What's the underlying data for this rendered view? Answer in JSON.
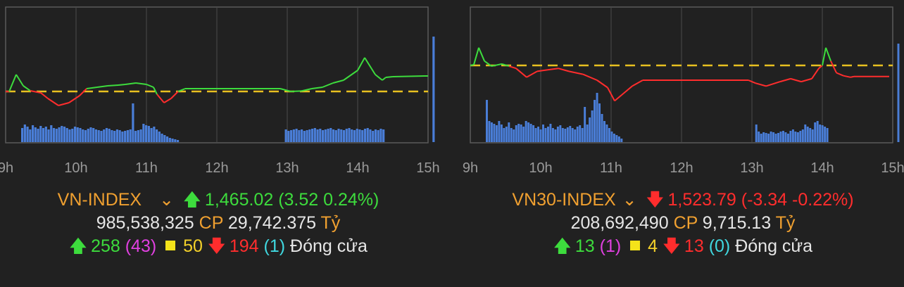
{
  "chart_data": [
    {
      "type": "line",
      "x_ticks": [
        "9h",
        "10h",
        "11h",
        "12h",
        "13h",
        "14h",
        "15h"
      ],
      "reference_line": "dashed-yellow",
      "colors": {
        "up": "#3ddc3d",
        "down": "#ff2d2d",
        "reference": "#e8c020",
        "volume": "#4a7ed8"
      },
      "series": [
        {
          "values": [
            [
              9.0,
              0
            ],
            [
              9.05,
              -0.1
            ],
            [
              9.15,
              12
            ],
            [
              9.25,
              4
            ],
            [
              9.35,
              0.5
            ],
            [
              9.5,
              -1
            ],
            [
              9.6,
              -5
            ],
            [
              9.75,
              -10
            ],
            [
              9.9,
              -8
            ],
            [
              10.05,
              -3
            ],
            [
              10.15,
              2
            ],
            [
              10.3,
              3
            ],
            [
              10.45,
              4
            ],
            [
              10.6,
              4.5
            ],
            [
              10.7,
              5
            ],
            [
              10.85,
              6
            ],
            [
              11.0,
              5
            ],
            [
              11.1,
              3
            ],
            [
              11.15,
              -2
            ],
            [
              11.25,
              -8
            ],
            [
              11.35,
              -5
            ],
            [
              11.45,
              0
            ],
            [
              11.55,
              2
            ],
            [
              11.65,
              2
            ],
            [
              12.0,
              2
            ],
            [
              12.5,
              2
            ],
            [
              12.9,
              2
            ],
            [
              13.05,
              0
            ],
            [
              13.2,
              0.3
            ],
            [
              13.35,
              2
            ],
            [
              13.5,
              3
            ],
            [
              13.65,
              6
            ],
            [
              13.8,
              8
            ],
            [
              14.0,
              15
            ],
            [
              14.1,
              24
            ],
            [
              14.25,
              12
            ],
            [
              14.35,
              8
            ],
            [
              14.4,
              10
            ],
            [
              14.5,
              10.5
            ],
            [
              14.95,
              11
            ]
          ]
        },
        {
          "values": [
            [
              14.95,
              11
            ],
            [
              15.0,
              11
            ]
          ]
        }
      ],
      "volume": [
        20,
        25,
        22,
        18,
        24,
        21,
        19,
        23,
        20,
        22,
        18,
        24,
        20,
        19,
        21,
        23,
        22,
        20,
        18,
        19,
        22,
        21,
        20,
        18,
        17,
        19,
        21,
        20,
        18,
        17,
        16,
        18,
        20,
        19,
        17,
        16,
        18,
        17,
        15,
        16,
        17,
        18,
        55,
        16,
        17,
        18,
        26,
        24,
        23,
        20,
        22,
        18,
        15,
        12,
        10,
        8,
        6,
        5,
        4,
        3,
        0,
        0,
        0,
        0,
        0,
        0,
        0,
        0,
        0,
        0,
        0,
        0,
        0,
        0,
        0,
        0,
        0,
        0,
        0,
        0,
        0,
        0,
        0,
        0,
        0,
        0,
        0,
        0,
        0,
        0,
        0,
        0,
        0,
        0,
        0,
        0,
        0,
        0,
        0,
        0,
        18,
        16,
        17,
        18,
        19,
        17,
        18,
        16,
        17,
        18,
        19,
        20,
        18,
        19,
        17,
        18,
        19,
        20,
        18,
        17,
        19,
        18,
        17,
        19,
        20,
        18,
        17,
        19,
        18,
        17,
        19,
        20,
        18,
        16,
        18,
        17,
        19,
        18,
        0,
        0,
        0,
        0,
        0,
        0,
        0,
        0,
        0,
        0,
        0,
        0,
        0,
        0,
        0,
        0,
        0,
        0,
        150
      ]
    },
    {
      "type": "line",
      "x_ticks": [
        "9h",
        "10h",
        "11h",
        "12h",
        "13h",
        "14h",
        "15h"
      ],
      "reference_line": "dashed-yellow",
      "colors": {
        "up": "#3ddc3d",
        "down": "#ff2d2d",
        "reference": "#e8c020",
        "volume": "#4a7ed8"
      },
      "series": [
        {
          "values": [
            [
              9.0,
              0
            ],
            [
              9.05,
              0.5
            ],
            [
              9.12,
              12
            ],
            [
              9.2,
              3
            ],
            [
              9.3,
              -0.5
            ],
            [
              9.45,
              1
            ],
            [
              9.55,
              -0.5
            ],
            [
              9.65,
              -2
            ],
            [
              9.8,
              -8
            ],
            [
              9.95,
              -4
            ],
            [
              10.1,
              -3
            ],
            [
              10.25,
              -2
            ],
            [
              10.4,
              -4
            ],
            [
              10.6,
              -6
            ],
            [
              10.8,
              -10
            ],
            [
              10.95,
              -15
            ],
            [
              11.05,
              -24
            ],
            [
              11.15,
              -20
            ],
            [
              11.3,
              -14
            ],
            [
              11.45,
              -10
            ],
            [
              12.0,
              -10
            ],
            [
              12.5,
              -10
            ],
            [
              12.95,
              -10
            ],
            [
              13.05,
              -12
            ],
            [
              13.2,
              -14
            ],
            [
              13.4,
              -11
            ],
            [
              13.55,
              -9
            ],
            [
              13.7,
              -11
            ],
            [
              13.85,
              -9
            ],
            [
              13.95,
              -2
            ],
            [
              14.0,
              0
            ],
            [
              14.05,
              12
            ],
            [
              14.12,
              3
            ],
            [
              14.2,
              -5
            ],
            [
              14.3,
              -7
            ],
            [
              14.4,
              -8
            ],
            [
              14.45,
              -7.5
            ],
            [
              14.95,
              -7.5
            ]
          ]
        }
      ],
      "volume": [
        60,
        30,
        28,
        26,
        24,
        30,
        25,
        20,
        22,
        28,
        20,
        18,
        24,
        26,
        25,
        22,
        30,
        28,
        26,
        24,
        20,
        22,
        18,
        25,
        20,
        22,
        26,
        20,
        18,
        22,
        24,
        20,
        19,
        21,
        23,
        20,
        18,
        22,
        24,
        20,
        50,
        25,
        35,
        45,
        60,
        70,
        55,
        40,
        30,
        25,
        20,
        15,
        12,
        10,
        8,
        5,
        0,
        0,
        0,
        0,
        0,
        0,
        0,
        0,
        0,
        0,
        0,
        0,
        0,
        0,
        0,
        0,
        0,
        0,
        0,
        0,
        0,
        0,
        0,
        0,
        0,
        0,
        0,
        0,
        0,
        0,
        0,
        0,
        0,
        0,
        0,
        0,
        0,
        0,
        0,
        0,
        0,
        0,
        0,
        0,
        0,
        0,
        0,
        0,
        0,
        0,
        0,
        0,
        0,
        0,
        25,
        15,
        12,
        14,
        13,
        12,
        15,
        14,
        12,
        13,
        15,
        16,
        14,
        12,
        16,
        18,
        15,
        14,
        16,
        18,
        25,
        22,
        20,
        18,
        28,
        30,
        25,
        24,
        22,
        20,
        0,
        0,
        0,
        0,
        0,
        0,
        0,
        0,
        0,
        0,
        0,
        0,
        0,
        0,
        0,
        0,
        0,
        0,
        0,
        0,
        0,
        0,
        0,
        0,
        0,
        0,
        0,
        0,
        140
      ]
    }
  ],
  "left": {
    "name": "VN-INDEX",
    "chevron": "⌄",
    "arrow_up": "🡅",
    "value": "1,465.02",
    "change": "(3.52 0.24%)",
    "volume": "985,538,325",
    "cp": "CP",
    "amount": "29,742.375",
    "unit": "Tỷ",
    "adv": "258",
    "adv_ceiling": "(43)",
    "unchanged": "50",
    "dec": "194",
    "dec_floor": "(1)",
    "status": "Đóng cửa"
  },
  "right": {
    "name": "VN30-INDEX",
    "chevron": "⌄",
    "arrow_down": "🡇",
    "value": "1,523.79",
    "change": "(-3.34 -0.22%)",
    "volume": "208,692,490",
    "cp": "CP",
    "amount": "9,715.13",
    "unit": "Tỷ",
    "adv": "13",
    "adv_ceiling": "(1)",
    "unchanged": "4",
    "dec": "13",
    "dec_floor": "(0)",
    "status": "Đóng cửa"
  },
  "icons": {
    "up": "arrow-up-icon",
    "down": "arrow-down-icon",
    "square": "square-icon",
    "chevron": "chevron-down-icon"
  }
}
